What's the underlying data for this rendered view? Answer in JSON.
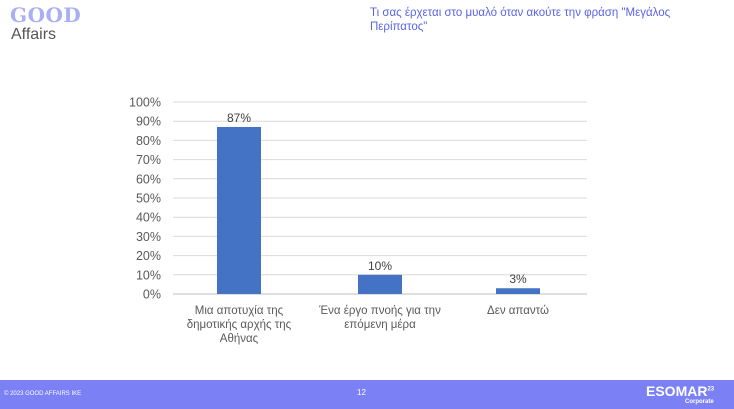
{
  "logo": {
    "line1": "GOOD",
    "line2": "Affairs"
  },
  "title": "Τι σας έρχεται στο μυαλό όταν ακούτε την φράση \"Μεγάλος Περίπατος\"",
  "footer": {
    "copyright": "© 2023 GOOD AFFAIRS IKE",
    "page": "12",
    "esomar": "ESOMAR",
    "esomar_sup": "23",
    "esomar_sub": "Corporate"
  },
  "colors": {
    "bar": "#4472c4",
    "title": "#5a63e8",
    "footer": "#7b80f5"
  },
  "chart_data": {
    "type": "bar",
    "categories": [
      [
        "Μια αποτυχία της",
        "δημοτικής αρχής της",
        "Αθήνας"
      ],
      [
        "Ένα έργο πνοής για την",
        "επόμενη μέρα"
      ],
      [
        "Δεν απαντώ"
      ]
    ],
    "values": [
      87,
      10,
      3
    ],
    "data_labels": [
      "87%",
      "10%",
      "3%"
    ],
    "ylim": [
      0,
      100
    ],
    "yticks": [
      "0%",
      "10%",
      "20%",
      "30%",
      "40%",
      "50%",
      "60%",
      "70%",
      "80%",
      "90%",
      "100%"
    ],
    "grid": true
  }
}
